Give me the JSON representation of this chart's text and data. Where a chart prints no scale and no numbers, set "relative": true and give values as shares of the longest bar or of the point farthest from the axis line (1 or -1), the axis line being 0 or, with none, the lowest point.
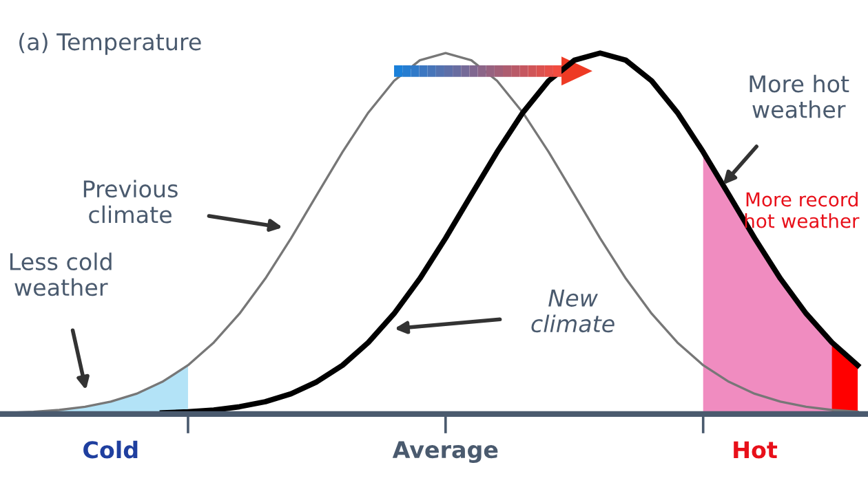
{
  "chart_data": {
    "type": "line",
    "title": "(a) Temperature",
    "relative": true,
    "categories": [
      null,
      null,
      null,
      null,
      "Cold",
      null,
      null,
      null,
      null,
      null,
      null,
      null,
      null,
      null,
      null,
      null,
      null,
      "Average",
      null,
      null,
      null,
      null,
      null,
      null,
      null,
      null,
      null,
      null,
      null,
      "Hot",
      null,
      null,
      null,
      null
    ],
    "series": [
      {
        "type": "area",
        "color": "#b3e3f7",
        "values": [
          0.003,
          0.006,
          0.011,
          0.02,
          0.034,
          0.056,
          0.089,
          0.135,
          null,
          null,
          null,
          null,
          null,
          null,
          null,
          null,
          null,
          null,
          null,
          null,
          null,
          null,
          null,
          null,
          null,
          null,
          null,
          null,
          null,
          null,
          null,
          null,
          null,
          null
        ]
      },
      {
        "type": "area",
        "color": "#f08cc0",
        "values": [
          null,
          null,
          null,
          null,
          null,
          null,
          null,
          null,
          null,
          null,
          null,
          null,
          null,
          null,
          null,
          null,
          null,
          null,
          null,
          null,
          null,
          null,
          null,
          null,
          null,
          null,
          null,
          0.726,
          0.607,
          0.487,
          0.375,
          0.278,
          0.198,
          0.135
        ]
      },
      {
        "type": "area",
        "color": "#ff0000",
        "values": [
          null,
          null,
          null,
          null,
          null,
          null,
          null,
          null,
          null,
          null,
          null,
          null,
          null,
          null,
          null,
          null,
          null,
          null,
          null,
          null,
          null,
          null,
          null,
          null,
          null,
          null,
          null,
          null,
          null,
          null,
          null,
          null,
          0.198,
          0.135
        ]
      },
      {
        "color": "#777777",
        "values": [
          0.003,
          0.006,
          0.011,
          0.02,
          0.034,
          0.056,
          0.089,
          0.135,
          0.198,
          0.278,
          0.375,
          0.487,
          0.607,
          0.726,
          0.835,
          0.923,
          0.98,
          1,
          0.98,
          0.923,
          0.835,
          0.726,
          0.607,
          0.487,
          0.375,
          0.278,
          0.198,
          0.135,
          0.089,
          0.056,
          0.034,
          0.02,
          0.011,
          0.006
        ]
      },
      {
        "color": "#000000",
        "values": [
          null,
          null,
          null,
          null,
          null,
          null,
          0.003,
          0.006,
          0.011,
          0.02,
          0.034,
          0.056,
          0.089,
          0.135,
          0.198,
          0.278,
          0.375,
          0.487,
          0.607,
          0.726,
          0.835,
          0.923,
          0.98,
          1,
          0.98,
          0.923,
          0.835,
          0.726,
          0.607,
          0.487,
          0.375,
          0.278,
          0.198,
          0.135
        ]
      }
    ],
    "annotations": [
      "Previous\nclimate",
      "New\nclimate",
      "Less cold\nweather",
      "More hot\nweather",
      "More record\nhot weather"
    ]
  }
}
